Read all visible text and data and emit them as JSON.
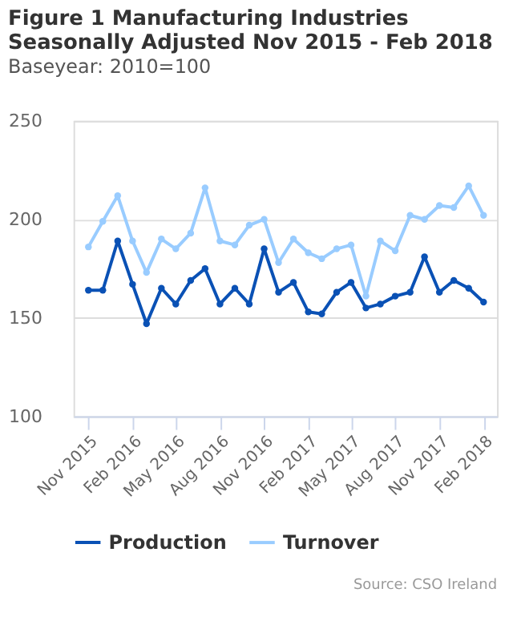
{
  "chart_data": {
    "type": "line",
    "title": "Figure 1 Manufacturing Industries Seasonally Adjusted Nov 2015 - Feb 2018",
    "subtitle": "Baseyear: 2010=100",
    "x": [
      "2015-11",
      "2015-12",
      "2016-01",
      "2016-02",
      "2016-03",
      "2016-04",
      "2016-05",
      "2016-06",
      "2016-07",
      "2016-08",
      "2016-09",
      "2016-10",
      "2016-11",
      "2016-12",
      "2017-01",
      "2017-02",
      "2017-03",
      "2017-04",
      "2017-05",
      "2017-06",
      "2017-07",
      "2017-08",
      "2017-09",
      "2017-10",
      "2017-11",
      "2017-12",
      "2018-01",
      "2018-02"
    ],
    "xlim": [
      "2015-10-01",
      "2018-03-01"
    ],
    "xticks": [
      {
        "value": "2015-11",
        "label": "Nov 2015"
      },
      {
        "value": "2016-02",
        "label": "Feb 2016"
      },
      {
        "value": "2016-05",
        "label": "May 2016"
      },
      {
        "value": "2016-08",
        "label": "Aug 2016"
      },
      {
        "value": "2016-11",
        "label": "Nov 2016"
      },
      {
        "value": "2017-02",
        "label": "Feb 2017"
      },
      {
        "value": "2017-05",
        "label": "May 2017"
      },
      {
        "value": "2017-08",
        "label": "Aug 2017"
      },
      {
        "value": "2017-11",
        "label": "Nov 2017"
      },
      {
        "value": "2018-02",
        "label": "Feb 2018"
      }
    ],
    "series": [
      {
        "name": "Production",
        "color": "#0a51b5",
        "values": [
          164,
          164,
          189,
          167,
          147,
          165,
          157,
          169,
          175,
          157,
          165,
          157,
          185,
          163,
          168,
          153,
          152,
          163,
          168,
          155,
          157,
          161,
          163,
          181,
          163,
          169,
          165,
          158
        ]
      },
      {
        "name": "Turnover",
        "color": "#99ccff",
        "values": [
          186,
          199,
          212,
          189,
          173,
          190,
          185,
          193,
          216,
          189,
          187,
          197,
          200,
          178,
          190,
          183,
          180,
          185,
          187,
          161,
          189,
          184,
          202,
          200,
          207,
          206,
          217,
          202
        ]
      }
    ],
    "ylim": [
      100,
      250
    ],
    "yticks": [
      100,
      150,
      200,
      250
    ],
    "grid": "y",
    "legend": "bottom",
    "marker": "circle",
    "line_style": "solid",
    "annotations": [
      "Source: CSO Ireland"
    ]
  }
}
